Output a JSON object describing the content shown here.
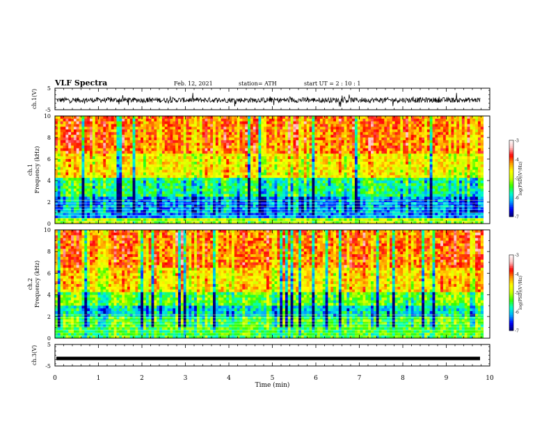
{
  "header": {
    "title": "VLF Spectra",
    "date": "Feb. 12, 2021",
    "station": "station= ATH",
    "start": "start  UT =   2 : 10 : 1"
  },
  "colors": {
    "colormap": [
      "#000070",
      "#0000ff",
      "#00aaff",
      "#00ffcc",
      "#33ff00",
      "#ccff00",
      "#ffff00",
      "#ff9900",
      "#ff0000",
      "#ffc0c0",
      "#ffffff"
    ]
  },
  "chart_data": [
    {
      "type": "line",
      "panel": "ch1-waveform",
      "ylabel": "ch.1(V)",
      "ylim": [
        -5,
        5
      ],
      "yticks": [
        "5",
        "-5"
      ],
      "xlim": [
        0,
        10
      ],
      "description_values": {
        "mean": -0.5,
        "spread": 1.2
      }
    },
    {
      "type": "heatmap",
      "panel": "ch1-spectrogram",
      "ylabel_top": "ch.1",
      "ylabel": "Frequency (kHz)",
      "ylim": [
        0,
        10
      ],
      "yticks": [
        "0",
        "2",
        "4",
        "6",
        "8",
        "10"
      ],
      "xlim": [
        0,
        9.85
      ],
      "colorbar": {
        "label": "log(PSD)(V²/Hz)",
        "range": [
          -7,
          -3
        ],
        "ticks": [
          "-3",
          "-4",
          "-5",
          "-6",
          "-7"
        ]
      },
      "bands": [
        {
          "f_low": 0,
          "f_high": 0.6,
          "level": -5.0
        },
        {
          "f_low": 0.6,
          "f_high": 2.4,
          "level": -6.2
        },
        {
          "f_low": 2.4,
          "f_high": 4.2,
          "level": -5.6
        },
        {
          "f_low": 4.2,
          "f_high": 6.5,
          "level": -4.6
        },
        {
          "f_low": 6.5,
          "f_high": 10,
          "level": -4.1
        }
      ]
    },
    {
      "type": "heatmap",
      "panel": "ch2-spectrogram",
      "ylabel_top": "ch.2",
      "ylabel": "Frequency (kHz)",
      "ylim": [
        0,
        10
      ],
      "yticks": [
        "0",
        "2",
        "4",
        "6",
        "8",
        "10"
      ],
      "xlim": [
        0,
        9.85
      ],
      "colorbar": {
        "label": "log(PSD)(V²/Hz)",
        "range": [
          -7,
          -3
        ],
        "ticks": [
          "-3",
          "-4",
          "-5",
          "-6",
          "-7"
        ]
      },
      "bands": [
        {
          "f_low": 0,
          "f_high": 2.0,
          "level": -5.4
        },
        {
          "f_low": 2.0,
          "f_high": 3.0,
          "level": -5.9
        },
        {
          "f_low": 3.0,
          "f_high": 4.2,
          "level": -5.3
        },
        {
          "f_low": 4.2,
          "f_high": 6.5,
          "level": -4.5
        },
        {
          "f_low": 6.5,
          "f_high": 10,
          "level": -4.1
        }
      ]
    },
    {
      "type": "line",
      "panel": "ch3-waveform",
      "ylabel": "ch.3(V)",
      "ylim": [
        -5,
        5
      ],
      "yticks": [
        "5",
        "-5"
      ],
      "xlim": [
        0,
        10
      ],
      "xticks": [
        "0",
        "1",
        "2",
        "3",
        "4",
        "5",
        "6",
        "7",
        "8",
        "9",
        "10"
      ],
      "xlabel": "Time (min)",
      "values_constant": -1.5
    }
  ]
}
